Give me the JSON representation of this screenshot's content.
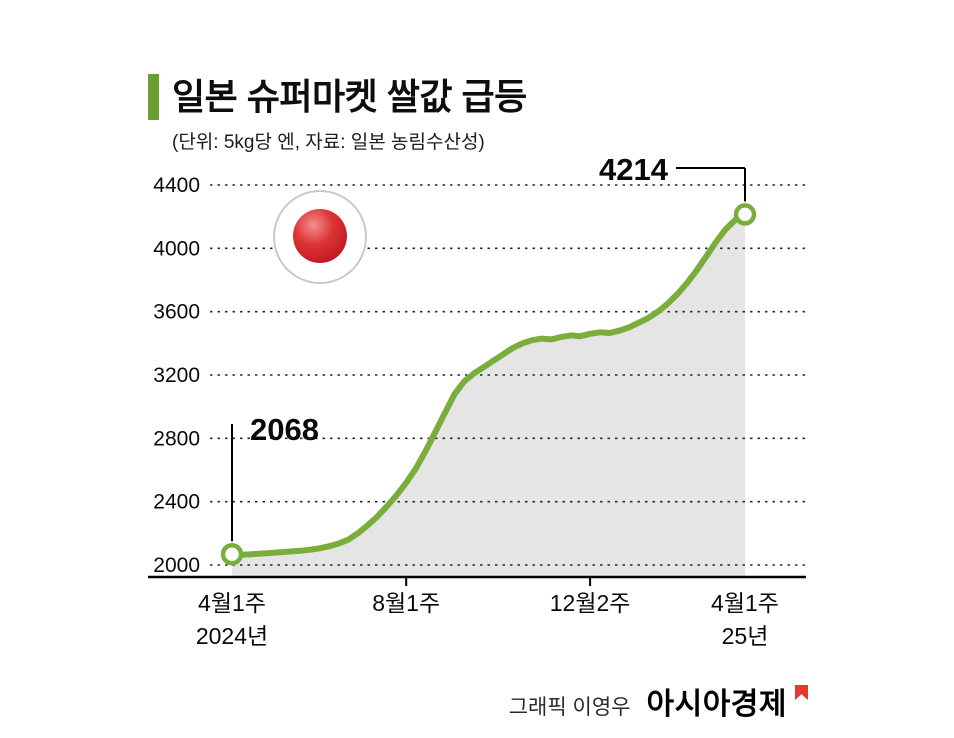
{
  "title": "일본 슈퍼마켓 쌀값 급등",
  "subtitle": "(단위: 5kg당 엔, 자료: 일본 농림수산성)",
  "footer": {
    "credit": "그래픽 이영우",
    "brand": "아시아경제"
  },
  "colors": {
    "accent_bar": "#6b9e30",
    "line": "#7aad3b",
    "area": "#e5e5e5",
    "grid": "#2a2a2a",
    "flag_red_dark": "#c01322",
    "brand_red": "#e8382d"
  },
  "chart_data": {
    "type": "area",
    "title": "일본 슈퍼마켓 쌀값 급등",
    "unit_note": "단위: 5kg당 엔",
    "source": "자료: 일본 농림수산성",
    "ylim": [
      2000,
      4400
    ],
    "yticks": [
      2000,
      2400,
      2800,
      3200,
      3600,
      4000,
      4400
    ],
    "grid": "dotted-horizontal",
    "legend": "none",
    "icon": "japan-flag",
    "xticks": [
      {
        "label": "4월1주",
        "sublabel": "2024년",
        "index": 0,
        "tick": false
      },
      {
        "label": "8월1주",
        "sublabel": "",
        "index": 18,
        "tick": true
      },
      {
        "label": "12월2주",
        "sublabel": "",
        "index": 37,
        "tick": true
      },
      {
        "label": "4월1주",
        "sublabel": "25년",
        "index": 53,
        "tick": false
      }
    ],
    "series": [
      {
        "name": "일본 슈퍼마켓 쌀값 (엔/5kg)",
        "values": [
          2068,
          2065,
          2068,
          2072,
          2076,
          2080,
          2085,
          2090,
          2096,
          2105,
          2118,
          2135,
          2160,
          2200,
          2250,
          2305,
          2370,
          2440,
          2520,
          2610,
          2720,
          2840,
          2960,
          3080,
          3160,
          3210,
          3250,
          3290,
          3330,
          3370,
          3400,
          3420,
          3430,
          3425,
          3440,
          3450,
          3445,
          3460,
          3470,
          3465,
          3480,
          3500,
          3530,
          3560,
          3600,
          3650,
          3710,
          3780,
          3860,
          3950,
          4040,
          4120,
          4180,
          4214
        ]
      }
    ],
    "annotations": [
      {
        "label": "2068",
        "point": "first"
      },
      {
        "label": "4214",
        "point": "last"
      }
    ]
  }
}
